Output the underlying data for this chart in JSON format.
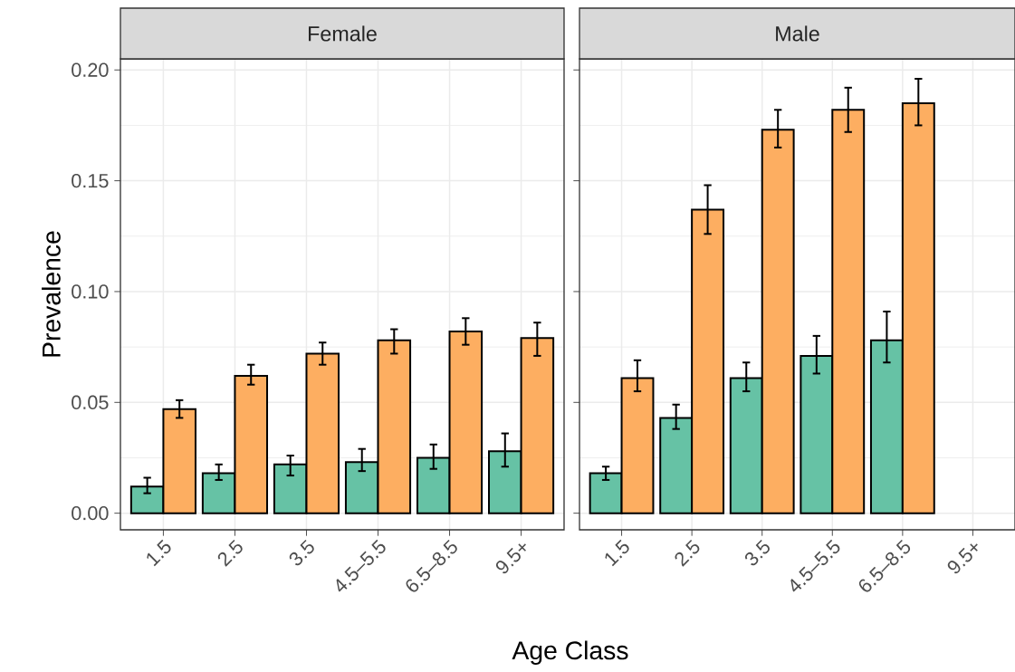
{
  "chart_data": [
    {
      "type": "bar",
      "title": "Female",
      "xlabel": "Age Class",
      "ylabel": "Prevalence",
      "categories": [
        "1.5",
        "2.5",
        "3.5",
        "4.5–5.5",
        "6.5–8.5",
        "9.5+"
      ],
      "series": [
        {
          "color": "#66c2a5",
          "values": [
            0.012,
            0.018,
            0.022,
            0.023,
            0.025,
            0.028
          ],
          "errors": [
            [
              0.009,
              0.016
            ],
            [
              0.015,
              0.022
            ],
            [
              0.017,
              0.026
            ],
            [
              0.019,
              0.029
            ],
            [
              0.02,
              0.031
            ],
            [
              0.021,
              0.036
            ]
          ]
        },
        {
          "color": "#fdae61",
          "values": [
            0.047,
            0.062,
            0.072,
            0.078,
            0.082,
            0.079
          ],
          "errors": [
            [
              0.043,
              0.051
            ],
            [
              0.058,
              0.067
            ],
            [
              0.067,
              0.077
            ],
            [
              0.072,
              0.083
            ],
            [
              0.076,
              0.088
            ],
            [
              0.071,
              0.086
            ]
          ]
        }
      ],
      "ylim": [
        -0.0075,
        0.205
      ],
      "yticks": [
        {
          "value": 0,
          "label": "0.00"
        },
        {
          "value": 0.05,
          "label": "0.05"
        },
        {
          "value": 0.1,
          "label": "0.10"
        },
        {
          "value": 0.15,
          "label": "0.15"
        },
        {
          "value": 0.2,
          "label": "0.20"
        }
      ],
      "grid": true
    },
    {
      "type": "bar",
      "title": "Male",
      "categories": [
        "1.5",
        "2.5",
        "3.5",
        "4.5–5.5",
        "6.5–8.5",
        "9.5+"
      ],
      "series": [
        {
          "color": "#66c2a5",
          "values": [
            0.018,
            0.043,
            0.061,
            0.071,
            0.078,
            null
          ],
          "errors": [
            [
              0.015,
              0.021
            ],
            [
              0.038,
              0.049
            ],
            [
              0.055,
              0.068
            ],
            [
              0.063,
              0.08
            ],
            [
              0.068,
              0.091
            ],
            null
          ]
        },
        {
          "color": "#fdae61",
          "values": [
            0.061,
            0.137,
            0.173,
            0.182,
            0.185,
            null
          ],
          "errors": [
            [
              0.055,
              0.069
            ],
            [
              0.126,
              0.148
            ],
            [
              0.165,
              0.182
            ],
            [
              0.172,
              0.192
            ],
            [
              0.175,
              0.196
            ],
            null
          ]
        }
      ],
      "ylim": [
        -0.0075,
        0.205
      ],
      "yticks": [
        0,
        0.05,
        0.1,
        0.15,
        0.2
      ],
      "grid": true,
      "tick_labels": "x"
    }
  ]
}
